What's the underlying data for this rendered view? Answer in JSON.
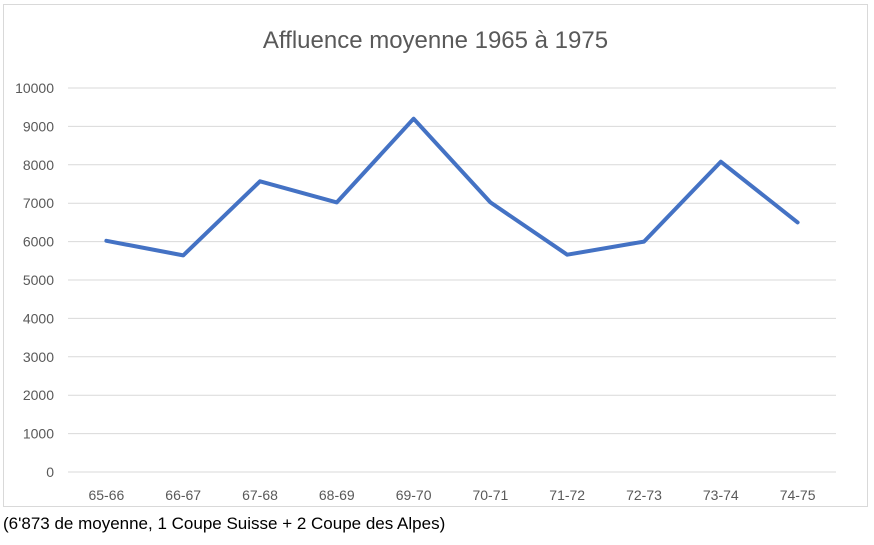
{
  "chart_data": {
    "type": "line",
    "title": "Affluence moyenne 1965 à 1975",
    "xlabel": "",
    "ylabel": "",
    "categories": [
      "65-66",
      "66-67",
      "67-68",
      "68-69",
      "69-70",
      "70-71",
      "71-72",
      "72-73",
      "73-74",
      "74-75"
    ],
    "series": [
      {
        "values": [
          6020,
          5640,
          7570,
          7020,
          9200,
          7020,
          5660,
          6000,
          8080,
          6500
        ],
        "color": "#4472C4"
      }
    ],
    "ylim": [
      0,
      10000
    ],
    "yticks": [
      "0",
      "1000",
      "2000",
      "3000",
      "4000",
      "5000",
      "6000",
      "7000",
      "8000",
      "9000",
      "10000"
    ],
    "grid": true,
    "legend": "none"
  },
  "caption": "(6'873 de moyenne, 1 Coupe Suisse + 2 Coupe des Alpes)"
}
